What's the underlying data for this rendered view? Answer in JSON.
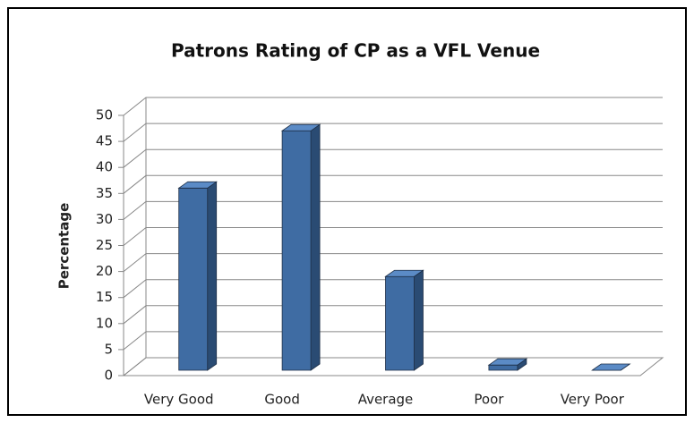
{
  "chart_data": {
    "type": "bar",
    "title": "Patrons Rating of CP as a VFL Venue",
    "y_label": "Percentage",
    "categories": [
      "Very Good",
      "Good",
      "Average",
      "Poor",
      "Very Poor"
    ],
    "values": [
      35,
      46,
      18,
      1,
      0
    ],
    "color": "#3f6ca3",
    "ylim": [
      0,
      50
    ],
    "yticks": [
      0,
      5,
      10,
      15,
      20,
      25,
      30,
      35,
      40,
      45,
      50
    ],
    "grid": true
  }
}
